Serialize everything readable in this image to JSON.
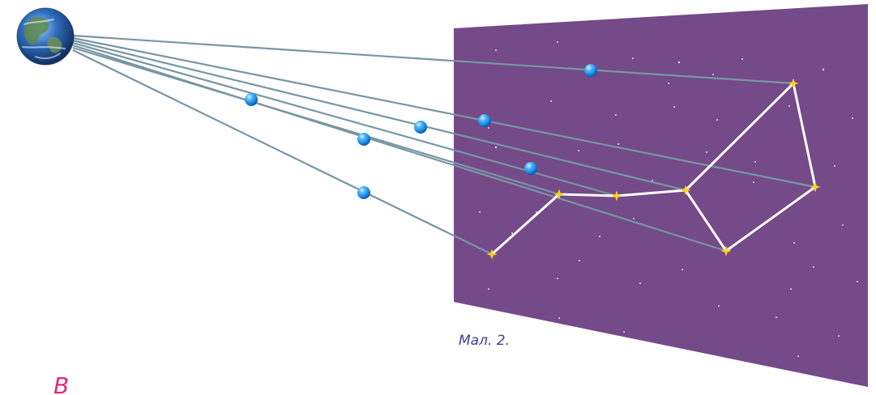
{
  "figure": {
    "caption": "Мал. 2.",
    "partial_heading": "В",
    "sky_color": "#744a88",
    "line_color": "#7796a4",
    "constellation_line_color": "#ffffff",
    "star_color": "#ffd21a",
    "sphere_color": "#1f8fe0",
    "heading_color": "#e0297a"
  },
  "icons": {
    "earth": "earth-globe-icon",
    "star": "star-icon",
    "sphere": "blue-sphere-icon"
  }
}
